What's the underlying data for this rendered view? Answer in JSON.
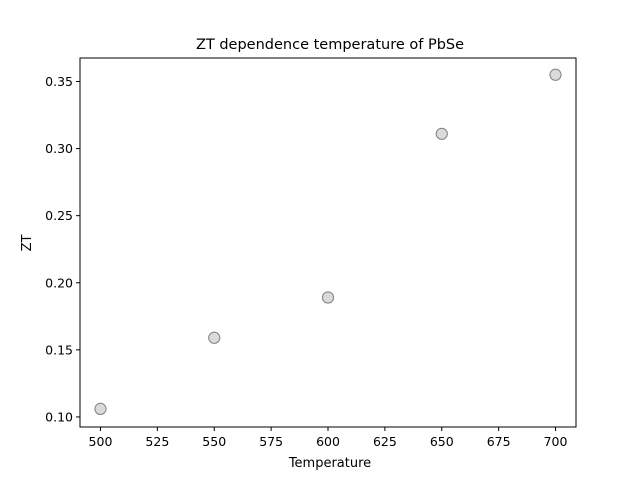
{
  "chart_data": {
    "type": "scatter",
    "title": "ZT dependence temperature of PbSe",
    "xlabel": "Temperature",
    "ylabel": "ZT",
    "xlim": [
      491,
      709
    ],
    "ylim": [
      0.0925,
      0.3675
    ],
    "xticks": [
      500,
      525,
      550,
      575,
      600,
      625,
      650,
      675,
      700
    ],
    "xtick_labels": [
      "500",
      "525",
      "550",
      "575",
      "600",
      "625",
      "650",
      "675",
      "700"
    ],
    "yticks": [
      0.1,
      0.15,
      0.2,
      0.25,
      0.3,
      0.35
    ],
    "ytick_labels": [
      "0.10",
      "0.15",
      "0.20",
      "0.25",
      "0.30",
      "0.35"
    ],
    "grid": false,
    "legend": "none",
    "marker_color": "#d3d3d3",
    "marker_edge_color": "#808080",
    "series": [
      {
        "x": [
          500,
          550,
          600,
          650,
          700
        ],
        "y": [
          0.106,
          0.159,
          0.189,
          0.311,
          0.355
        ]
      }
    ]
  }
}
